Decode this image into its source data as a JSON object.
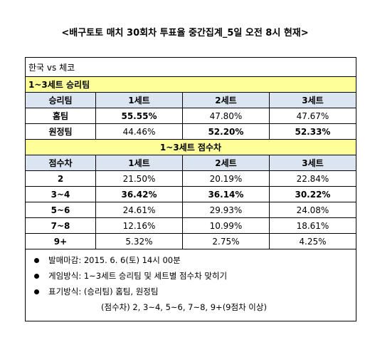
{
  "title": "<배구토토 매치 30회차 투표율 중간집계_5일 오전 8시 현재>",
  "table": {
    "match": "한국 vs 체코",
    "section1": "1~3세트 승리팀",
    "header1": [
      "승리팀",
      "1세트",
      "2세트",
      "3세트"
    ],
    "rows1": [
      [
        "홈팀",
        "55.55%",
        "47.80%",
        "47.67%"
      ],
      [
        "원정팀",
        "44.46%",
        "52.20%",
        "52.33%"
      ]
    ],
    "section2": "1~3세트 점수차",
    "header2": [
      "점수차",
      "1세트",
      "2세트",
      "3세트"
    ],
    "rows2": [
      [
        "2",
        "21.50%",
        "20.19%",
        "22.84%"
      ],
      [
        "3~4",
        "36.42%",
        "36.14%",
        "30.22%"
      ],
      [
        "5~6",
        "24.61%",
        "29.93%",
        "24.08%"
      ],
      [
        "7~8",
        "12.16%",
        "10.99%",
        "18.61%"
      ],
      [
        "9+",
        "5.32%",
        "2.75%",
        "4.25%"
      ]
    ]
  },
  "notes": [
    "발매마감: 2015. 6. 6(토) 14시 00분",
    "게임방식: 1~3세트 승리팀 및 세트별 점수차 맞히기",
    "표기방식: (승리팀) 홈팀, 원정팀",
    "(점수차) 2, 3~4, 5~6, 7~8, 9+(9점차 이상)"
  ]
}
